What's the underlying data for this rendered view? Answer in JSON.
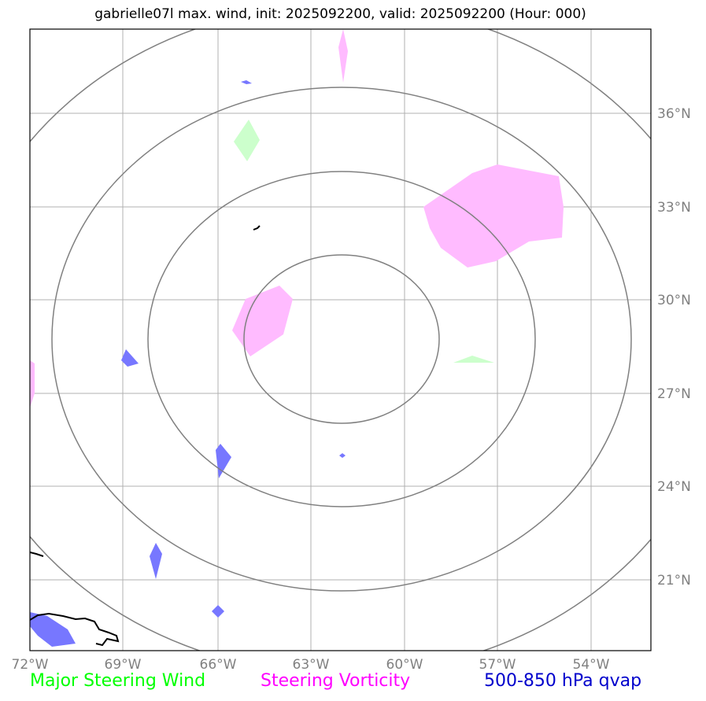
{
  "title": "gabrielle07l max. wind, init: 2025092200, valid: 2025092200 (Hour: 000)",
  "map": {
    "lon_range": [
      -72,
      -52
    ],
    "lat_range": [
      19,
      39
    ],
    "lon_ticks": [
      "72°W",
      "69°W",
      "66°W",
      "63°W",
      "60°W",
      "57°W",
      "54°W"
    ],
    "lat_ticks": [
      "21°N",
      "24°N",
      "27°N",
      "30°N",
      "33°N",
      "36°N"
    ],
    "storm_center": {
      "lon": -62,
      "lat": 29.2
    },
    "range_rings_count": 4,
    "grid": true,
    "colors": {
      "frame": "#000000",
      "grid": "#b0b0b0",
      "rings": "#808080",
      "wind": "#ccffcc",
      "vorticity": "#ffbbff",
      "qvap": "#7777ff",
      "tick_text": "#808080"
    }
  },
  "legend": {
    "wind": "Major Steering Wind",
    "vorticity": "Steering Vorticity",
    "qvap": "500-850 hPa qvap",
    "wind_color": "#00ff00",
    "vorticity_color": "#ff00ff",
    "qvap_color": "#0000cc"
  }
}
